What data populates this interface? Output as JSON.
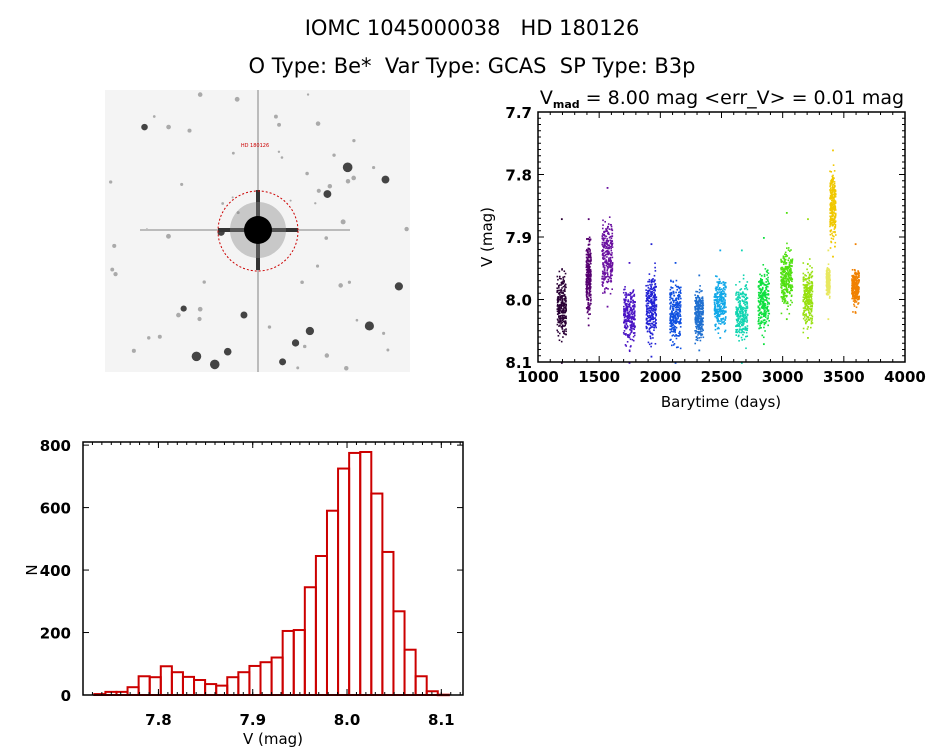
{
  "header": {
    "title": "IOMC 1045000038   HD 180126",
    "subtitle": "O Type: Be*  Var Type: GCAS  SP Type: B3p"
  },
  "image_panel": {
    "description_label": "HD 180126",
    "marker_color": "#cc0000"
  },
  "chart_data": [
    {
      "type": "scatter",
      "title_parts": {
        "v": "V",
        "sub": "mad",
        "rest": " = 8.00 mag <err_V> = 0.01 mag"
      },
      "xlabel": "Barytime (days)",
      "ylabel": "V (mag)",
      "xlim": [
        1000,
        4000
      ],
      "ylim": [
        8.1,
        7.7
      ],
      "y_inverted": true,
      "xticks": [
        1000,
        1500,
        2000,
        2500,
        3000,
        3500,
        4000
      ],
      "xtick_labels": [
        "1000",
        "1500",
        "2000",
        "2500",
        "3000",
        "3500",
        "4000"
      ],
      "yticks": [
        7.7,
        7.8,
        7.9,
        8.0,
        8.1
      ],
      "ytick_labels": [
        "7.7",
        "7.8",
        "7.9",
        "8.0",
        "8.1"
      ],
      "color_scale": "time-ordered rainbow",
      "seasons": [
        {
          "t": [
            1150,
            1225
          ],
          "v": [
            7.94,
            8.08
          ],
          "outliers": [
            7.87,
            8.1
          ],
          "color": "#2a0035"
        },
        {
          "t": [
            1387,
            1427
          ],
          "v": [
            7.88,
            8.04
          ],
          "outliers": [
            7.87,
            8.04
          ],
          "color": "#560070"
        },
        {
          "t": [
            1517,
            1605
          ],
          "v": [
            7.84,
            8.01
          ],
          "outliers": [
            7.82,
            8.01
          ],
          "color": "#6a10a0"
        },
        {
          "t": [
            1694,
            1787
          ],
          "v": [
            7.96,
            8.09
          ],
          "outliers": [
            7.94,
            8.1
          ],
          "color": "#4a14c4"
        },
        {
          "t": [
            1877,
            1963
          ],
          "v": [
            7.93,
            8.09
          ],
          "outliers": [
            7.91,
            8.09
          ],
          "color": "#2222d4"
        },
        {
          "t": [
            2072,
            2162
          ],
          "v": [
            7.95,
            8.09
          ],
          "outliers": [
            7.94,
            8.1
          ],
          "color": "#1050e0"
        },
        {
          "t": [
            2277,
            2345
          ],
          "v": [
            7.97,
            8.08
          ],
          "outliers": [
            7.96,
            8.08
          ],
          "color": "#2070d0"
        },
        {
          "t": [
            2435,
            2530
          ],
          "v": [
            7.95,
            8.06
          ],
          "outliers": [
            7.92,
            8.06
          ],
          "color": "#10a8e8"
        },
        {
          "t": [
            2611,
            2707
          ],
          "v": [
            7.95,
            8.09
          ],
          "outliers": [
            7.92,
            8.1
          ],
          "color": "#10d4b0"
        },
        {
          "t": [
            2794,
            2884
          ],
          "v": [
            7.93,
            8.07
          ],
          "outliers": [
            7.9,
            8.07
          ],
          "color": "#10e040"
        },
        {
          "t": [
            2979,
            3074
          ],
          "v": [
            7.9,
            8.03
          ],
          "outliers": [
            7.86,
            8.03
          ],
          "color": "#50e010"
        },
        {
          "t": [
            3161,
            3238
          ],
          "v": [
            7.93,
            8.06
          ],
          "outliers": [
            7.87,
            8.06
          ],
          "color": "#98e010"
        },
        {
          "t": [
            3352,
            3380
          ],
          "v": [
            7.94,
            8.0
          ],
          "outliers": [
            7.92,
            8.03
          ],
          "color": "#e8e860"
        },
        {
          "t": [
            3380,
            3428
          ],
          "v": [
            7.77,
            7.93
          ],
          "outliers": [
            7.76,
            7.93
          ],
          "color": "#f0c800"
        },
        {
          "t": [
            3559,
            3619
          ],
          "v": [
            7.94,
            8.02
          ],
          "outliers": [
            7.91,
            8.02
          ],
          "color": "#f08000"
        }
      ]
    },
    {
      "type": "bar",
      "subtype": "histogram",
      "xlabel": "V (mag)",
      "ylabel": "N",
      "xlim": [
        7.72,
        8.123
      ],
      "ylim": [
        0,
        810
      ],
      "xticks": [
        7.8,
        7.9,
        8.0,
        8.1
      ],
      "xtick_labels": [
        "7.8",
        "7.9",
        "8.0",
        "8.1"
      ],
      "yticks": [
        0,
        200,
        400,
        600,
        800
      ],
      "ytick_labels": [
        "0",
        "200",
        "400",
        "600",
        "800"
      ],
      "bin_start": 7.732,
      "bin_width": 0.01175,
      "values": [
        3,
        10,
        10,
        25,
        60,
        57,
        92,
        73,
        58,
        48,
        35,
        30,
        57,
        73,
        93,
        105,
        120,
        205,
        208,
        345,
        445,
        590,
        725,
        775,
        778,
        645,
        458,
        268,
        145,
        60,
        12,
        1
      ],
      "bar_color": "#cc0000"
    }
  ]
}
